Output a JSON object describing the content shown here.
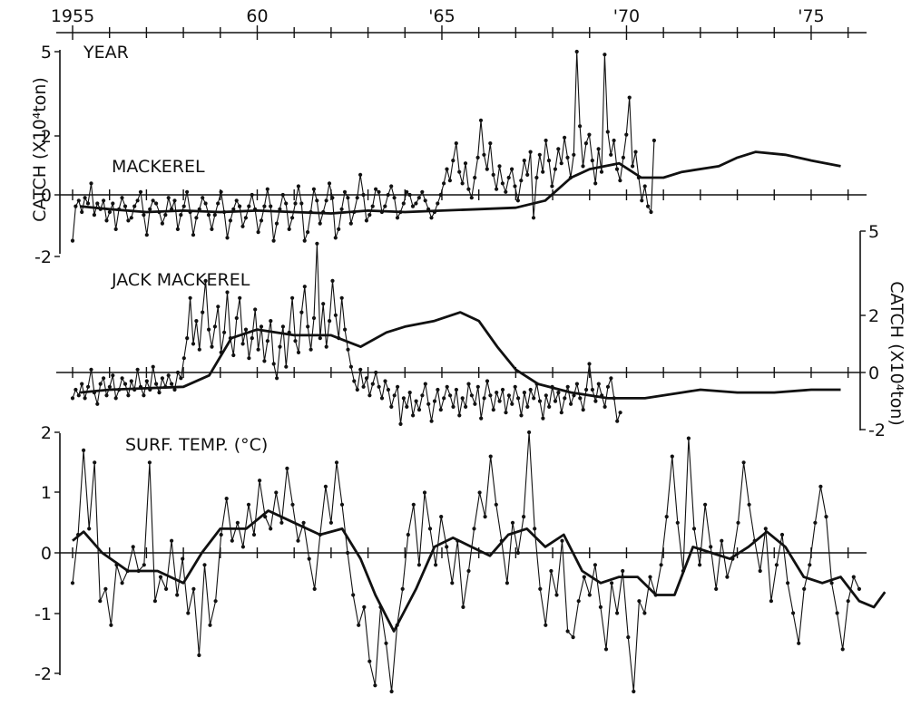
{
  "chart_data": {
    "type": "line",
    "top_axis": {
      "label": "YEAR",
      "range": [
        1955,
        1976.5
      ],
      "tick_labels": [
        {
          "year": 1955,
          "text": "1955"
        },
        {
          "year": 1960,
          "text": "60"
        },
        {
          "year": 1965,
          "text": "'65"
        },
        {
          "year": 1970,
          "text": "'70"
        },
        {
          "year": 1975,
          "text": "'75"
        }
      ]
    },
    "panels": [
      {
        "name": "MACKEREL",
        "ylabel": "CATCH (X10⁴ton)",
        "ylabel_side": "left",
        "ylim": [
          -2,
          5
        ],
        "y_ticks": [
          "5",
          "2",
          "0",
          "-2"
        ],
        "raw_start_year": 1955.0,
        "raw": [
          -1.6,
          -0.4,
          -0.2,
          -0.6,
          -0.1,
          -0.3,
          0.4,
          -0.7,
          -0.3,
          -0.5,
          -0.2,
          -0.9,
          -0.6,
          -0.3,
          -1.2,
          -0.5,
          -0.1,
          -0.4,
          -0.9,
          -0.8,
          -0.4,
          -0.2,
          0.1,
          -0.7,
          -1.4,
          -0.5,
          -0.2,
          -0.3,
          -0.6,
          -1.0,
          -0.7,
          -0.1,
          -0.5,
          -0.2,
          -1.2,
          -0.7,
          -0.4,
          0.1,
          -0.6,
          -1.4,
          -0.8,
          -0.5,
          -0.1,
          -0.3,
          -0.7,
          -1.2,
          -0.7,
          -0.3,
          0.1,
          -0.6,
          -1.5,
          -0.9,
          -0.5,
          -0.2,
          -0.4,
          -1.1,
          -0.8,
          -0.4,
          0.0,
          -0.5,
          -1.3,
          -0.9,
          -0.4,
          0.2,
          -0.4,
          -1.6,
          -1.0,
          -0.5,
          0.0,
          -0.3,
          -1.2,
          -0.8,
          -0.3,
          0.3,
          -0.3,
          -1.6,
          -1.3,
          -0.6,
          0.2,
          -0.2,
          -1.0,
          -0.6,
          -0.2,
          0.4,
          -0.1,
          -1.5,
          -1.2,
          -0.5,
          0.1,
          -0.1,
          -1.0,
          -0.6,
          -0.1,
          0.7,
          0.0,
          -0.9,
          -0.7,
          -0.4,
          0.2,
          0.1,
          -0.6,
          -0.4,
          0.0,
          0.3,
          -0.1,
          -0.8,
          -0.6,
          -0.3,
          0.1,
          0.0,
          -0.4,
          -0.3,
          -0.1,
          0.1,
          -0.2,
          -0.5,
          -0.8,
          -0.6,
          -0.3,
          0.0,
          0.4,
          0.9,
          0.5,
          1.2,
          1.8,
          0.8,
          0.4,
          1.1,
          0.2,
          -0.1,
          0.6,
          1.3,
          2.6,
          1.4,
          0.9,
          1.8,
          0.7,
          0.2,
          1.0,
          0.4,
          0.1,
          0.6,
          0.9,
          0.3,
          -0.2,
          0.5,
          1.2,
          0.7,
          1.5,
          -0.8,
          0.6,
          1.4,
          0.8,
          1.9,
          1.2,
          0.3,
          0.9,
          1.6,
          1.1,
          2.0,
          1.3,
          0.6,
          1.4,
          5.0,
          2.4,
          1.0,
          1.8,
          2.1,
          1.2,
          0.4,
          1.6,
          0.8,
          4.9,
          2.2,
          1.4,
          1.9,
          0.9,
          0.5,
          1.3,
          2.1,
          3.4,
          1.0,
          1.5,
          0.6,
          -0.2,
          0.3,
          -0.4,
          -0.6,
          1.9
        ],
        "smooth": [
          [
            1955.2,
            -0.4
          ],
          [
            1956,
            -0.5
          ],
          [
            1957,
            -0.6
          ],
          [
            1958,
            -0.55
          ],
          [
            1959,
            -0.6
          ],
          [
            1960,
            -0.55
          ],
          [
            1961,
            -0.6
          ],
          [
            1962,
            -0.65
          ],
          [
            1963,
            -0.55
          ],
          [
            1964,
            -0.6
          ],
          [
            1965,
            -0.55
          ],
          [
            1966,
            -0.5
          ],
          [
            1967,
            -0.45
          ],
          [
            1967.8,
            -0.2
          ],
          [
            1968.5,
            0.6
          ],
          [
            1969,
            0.9
          ],
          [
            1969.8,
            1.1
          ],
          [
            1970.4,
            0.6
          ],
          [
            1971,
            0.6
          ],
          [
            1971.5,
            0.8
          ],
          [
            1972.5,
            1.0
          ],
          [
            1973,
            1.3
          ],
          [
            1973.5,
            1.5
          ],
          [
            1974.3,
            1.4
          ],
          [
            1975,
            1.2
          ],
          [
            1975.8,
            1.0
          ]
        ]
      },
      {
        "name": "JACK MACKEREL",
        "ylabel": "CATCH (X10⁴ton)",
        "ylabel_side": "right",
        "ylim": [
          -2,
          5
        ],
        "y_ticks": [
          "5",
          "2",
          "0",
          "-2"
        ],
        "raw_start_year": 1955.0,
        "raw": [
          -0.9,
          -0.6,
          -0.8,
          -0.4,
          -0.9,
          -0.5,
          0.1,
          -0.7,
          -1.1,
          -0.4,
          -0.2,
          -0.8,
          -0.5,
          -0.1,
          -0.9,
          -0.6,
          -0.2,
          -0.4,
          -0.8,
          -0.3,
          -0.6,
          0.1,
          -0.5,
          -0.8,
          -0.3,
          -0.6,
          0.2,
          -0.4,
          -0.7,
          -0.2,
          -0.5,
          -0.1,
          -0.4,
          -0.6,
          0.0,
          -0.2,
          0.5,
          1.2,
          2.6,
          1.0,
          1.8,
          0.8,
          2.1,
          3.2,
          1.5,
          0.9,
          1.6,
          2.3,
          0.7,
          1.4,
          2.8,
          1.2,
          0.6,
          1.9,
          2.6,
          1.0,
          1.5,
          0.5,
          1.2,
          2.2,
          0.8,
          1.6,
          0.4,
          1.1,
          1.8,
          0.3,
          -0.2,
          0.9,
          1.6,
          0.2,
          1.4,
          2.6,
          1.1,
          0.7,
          2.1,
          3.0,
          1.6,
          0.8,
          1.9,
          4.5,
          1.2,
          2.4,
          0.9,
          1.8,
          3.2,
          2.0,
          1.2,
          2.6,
          1.5,
          0.8,
          0.2,
          -0.3,
          -0.6,
          0.1,
          -0.5,
          -0.2,
          -0.8,
          -0.4,
          0.0,
          -0.5,
          -0.9,
          -0.3,
          -0.6,
          -1.2,
          -0.8,
          -0.5,
          -1.8,
          -0.9,
          -1.2,
          -0.7,
          -1.5,
          -1.0,
          -1.3,
          -0.8,
          -0.4,
          -1.1,
          -1.7,
          -1.0,
          -0.6,
          -1.3,
          -0.9,
          -0.5,
          -0.8,
          -1.2,
          -0.6,
          -1.5,
          -0.9,
          -1.2,
          -0.4,
          -0.8,
          -1.1,
          -0.5,
          -1.6,
          -0.9,
          -0.3,
          -0.8,
          -1.3,
          -0.7,
          -1.0,
          -0.6,
          -1.4,
          -0.8,
          -1.1,
          -0.5,
          -0.9,
          -1.5,
          -0.7,
          -1.2,
          -0.6,
          -0.9,
          -0.4,
          -1.0,
          -1.6,
          -0.8,
          -1.2,
          -0.5,
          -1.0,
          -0.7,
          -1.4,
          -0.9,
          -0.5,
          -1.1,
          -0.8,
          -0.4,
          -0.9,
          -1.3,
          -0.6,
          0.3,
          -0.6,
          -1.0,
          -0.4,
          -0.8,
          -1.2,
          -0.5,
          -0.2,
          -0.9,
          -1.7,
          -1.4
        ],
        "smooth": [
          [
            1955.2,
            -0.7
          ],
          [
            1956,
            -0.6
          ],
          [
            1957,
            -0.55
          ],
          [
            1958,
            -0.5
          ],
          [
            1958.7,
            -0.1
          ],
          [
            1959.3,
            1.2
          ],
          [
            1960,
            1.5
          ],
          [
            1961,
            1.3
          ],
          [
            1962,
            1.3
          ],
          [
            1962.8,
            0.9
          ],
          [
            1963.5,
            1.4
          ],
          [
            1964,
            1.6
          ],
          [
            1964.8,
            1.8
          ],
          [
            1965.5,
            2.1
          ],
          [
            1966,
            1.8
          ],
          [
            1966.5,
            0.9
          ],
          [
            1967,
            0.1
          ],
          [
            1967.6,
            -0.4
          ],
          [
            1968.5,
            -0.7
          ],
          [
            1969.5,
            -0.9
          ],
          [
            1970.5,
            -0.9
          ],
          [
            1971.5,
            -0.7
          ],
          [
            1972,
            -0.6
          ],
          [
            1973,
            -0.7
          ],
          [
            1974,
            -0.7
          ],
          [
            1975,
            -0.6
          ],
          [
            1975.8,
            -0.6
          ]
        ]
      },
      {
        "name": "SURF. TEMP. (°C)",
        "ylabel": "",
        "ylabel_side": "left",
        "ylim": [
          -2.4,
          2
        ],
        "y_ticks": [
          "2",
          "1",
          "0",
          "-1",
          "-2"
        ],
        "raw_start_year": 1955.0,
        "raw": [
          -0.5,
          0.3,
          1.7,
          0.4,
          1.5,
          -0.8,
          -0.6,
          -1.2,
          -0.2,
          -0.5,
          -0.3,
          0.1,
          -0.3,
          -0.2,
          1.5,
          -0.8,
          -0.4,
          -0.6,
          0.2,
          -0.7,
          -0.1,
          -1.0,
          -0.6,
          -1.7,
          -0.2,
          -1.2,
          -0.8,
          0.3,
          0.9,
          0.2,
          0.5,
          0.1,
          0.8,
          0.3,
          1.2,
          0.6,
          0.4,
          1.0,
          0.5,
          1.4,
          0.8,
          0.2,
          0.5,
          -0.1,
          -0.6,
          0.3,
          1.1,
          0.5,
          1.5,
          0.8,
          0.0,
          -0.7,
          -1.2,
          -0.9,
          -1.8,
          -2.2,
          -0.9,
          -1.5,
          -2.3,
          -1.2,
          -0.6,
          0.3,
          0.8,
          -0.2,
          1.0,
          0.4,
          -0.2,
          0.6,
          0.1,
          -0.5,
          0.2,
          -0.9,
          -0.3,
          0.4,
          1.0,
          0.6,
          1.6,
          0.8,
          0.2,
          -0.5,
          0.5,
          0.0,
          0.6,
          2.0,
          0.4,
          -0.6,
          -1.2,
          -0.3,
          -0.7,
          0.2,
          -1.3,
          -1.4,
          -0.8,
          -0.4,
          -0.7,
          -0.2,
          -0.9,
          -1.6,
          -0.5,
          -1.0,
          -0.3,
          -1.4,
          -2.3,
          -0.8,
          -1.0,
          -0.4,
          -0.7,
          -0.2,
          0.6,
          1.6,
          0.5,
          -0.3,
          1.9,
          0.4,
          -0.2,
          0.8,
          0.1,
          -0.6,
          0.2,
          -0.4,
          -0.1,
          0.5,
          1.5,
          0.8,
          0.2,
          -0.3,
          0.4,
          -0.8,
          -0.2,
          0.3,
          -0.5,
          -1.0,
          -1.5,
          -0.6,
          -0.2,
          0.5,
          1.1,
          0.6,
          -0.5,
          -1.0,
          -1.6,
          -0.8,
          -0.4,
          -0.6
        ],
        "raw_end_year": 1976.3,
        "smooth": [
          [
            1955.0,
            0.2
          ],
          [
            1955.3,
            0.35
          ],
          [
            1955.8,
            0.0
          ],
          [
            1956.5,
            -0.3
          ],
          [
            1957.3,
            -0.3
          ],
          [
            1958,
            -0.5
          ],
          [
            1958.5,
            0.0
          ],
          [
            1959,
            0.4
          ],
          [
            1959.7,
            0.4
          ],
          [
            1960.3,
            0.7
          ],
          [
            1961,
            0.5
          ],
          [
            1961.7,
            0.3
          ],
          [
            1962.3,
            0.4
          ],
          [
            1962.8,
            -0.1
          ],
          [
            1963.2,
            -0.7
          ],
          [
            1963.7,
            -1.3
          ],
          [
            1964.3,
            -0.6
          ],
          [
            1964.8,
            0.1
          ],
          [
            1965.3,
            0.25
          ],
          [
            1965.8,
            0.1
          ],
          [
            1966.3,
            -0.05
          ],
          [
            1966.8,
            0.3
          ],
          [
            1967.3,
            0.4
          ],
          [
            1967.8,
            0.1
          ],
          [
            1968.3,
            0.3
          ],
          [
            1968.8,
            -0.3
          ],
          [
            1969.3,
            -0.5
          ],
          [
            1969.8,
            -0.4
          ],
          [
            1970.3,
            -0.4
          ],
          [
            1970.8,
            -0.7
          ],
          [
            1971.3,
            -0.7
          ],
          [
            1971.8,
            0.1
          ],
          [
            1972.3,
            0.0
          ],
          [
            1972.8,
            -0.1
          ],
          [
            1973.3,
            0.1
          ],
          [
            1973.8,
            0.35
          ],
          [
            1974.3,
            0.1
          ],
          [
            1974.8,
            -0.4
          ],
          [
            1975.3,
            -0.5
          ],
          [
            1975.8,
            -0.4
          ],
          [
            1976.3,
            -0.8
          ],
          [
            1976.7,
            -0.9
          ],
          [
            1977.0,
            -0.65
          ]
        ]
      }
    ]
  }
}
